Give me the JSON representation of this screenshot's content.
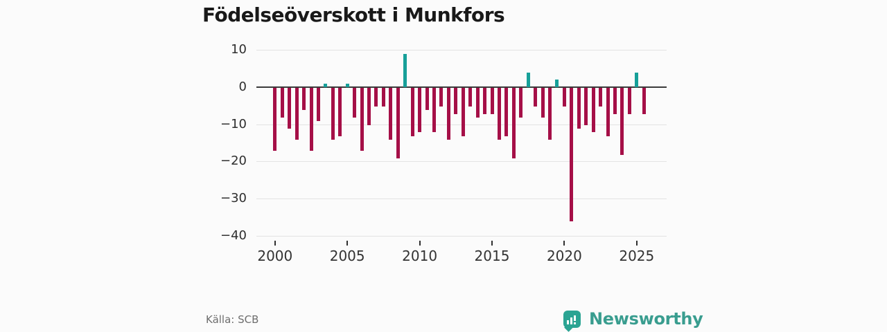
{
  "title": "Födelseöverskott i Munkfors",
  "source": "Källa: SCB",
  "brand": {
    "name": "Newsworthy",
    "icon": "bar-chart-speech-bubble-icon",
    "color": "#399d8f"
  },
  "colors": {
    "background": "#fbfbfb",
    "positive": "#17a099",
    "negative": "#a50f47",
    "gridline": "#e3e3e3",
    "zero_axis": "#3a3a3a",
    "title_text": "#191919",
    "axis_text": "#333333",
    "source_text": "#6e6e6e"
  },
  "chart_data": {
    "type": "bar",
    "title": "Födelseöverskott i Munkfors",
    "xlabel": "",
    "ylabel": "",
    "ylim": [
      -40,
      11
    ],
    "grid": "horizontal",
    "y_ticks": [
      10,
      0,
      -10,
      -20,
      -30,
      -40
    ],
    "y_tick_labels": [
      "10",
      "0",
      "−10",
      "−20",
      "−30",
      "−40"
    ],
    "x_ticks": [
      2000,
      2005,
      2010,
      2015,
      2020,
      2025
    ],
    "x_tick_labels": [
      "2000",
      "2005",
      "2010",
      "2015",
      "2020",
      "2025"
    ],
    "period_type": "half-year",
    "periods": [
      "2000H1",
      "2000H2",
      "2001H1",
      "2001H2",
      "2002H1",
      "2002H2",
      "2003H1",
      "2003H2",
      "2004H1",
      "2004H2",
      "2005H1",
      "2005H2",
      "2006H1",
      "2006H2",
      "2007H1",
      "2007H2",
      "2008H1",
      "2008H2",
      "2009H1",
      "2009H2",
      "2010H1",
      "2010H2",
      "2011H1",
      "2011H2",
      "2012H1",
      "2012H2",
      "2013H1",
      "2013H2",
      "2014H1",
      "2014H2",
      "2015H1",
      "2015H2",
      "2016H1",
      "2016H2",
      "2017H1",
      "2017H2",
      "2018H1",
      "2018H2",
      "2019H1",
      "2019H2",
      "2020H1",
      "2020H2",
      "2021H1",
      "2021H2",
      "2022H1",
      "2022H2",
      "2023H1",
      "2023H2",
      "2024H1",
      "2024H2",
      "2025H1",
      "2025H2"
    ],
    "values": [
      -17,
      -8,
      -11,
      -14,
      -6,
      -17,
      -9,
      1,
      -14,
      -13,
      1,
      -8,
      -17,
      -10,
      -5,
      -5,
      -14,
      -19,
      9,
      -13,
      -12,
      -6,
      -12,
      -5,
      -14,
      -7,
      -13,
      -5,
      -8,
      -7,
      -7,
      -14,
      -13,
      -19,
      -8,
      4,
      -5,
      -8,
      -14,
      2,
      -5,
      -36,
      -11,
      -10,
      -12,
      -5,
      -13,
      -7,
      -18,
      -7,
      4,
      -7
    ],
    "positive_color": "#17a099",
    "negative_color": "#a50f47"
  }
}
